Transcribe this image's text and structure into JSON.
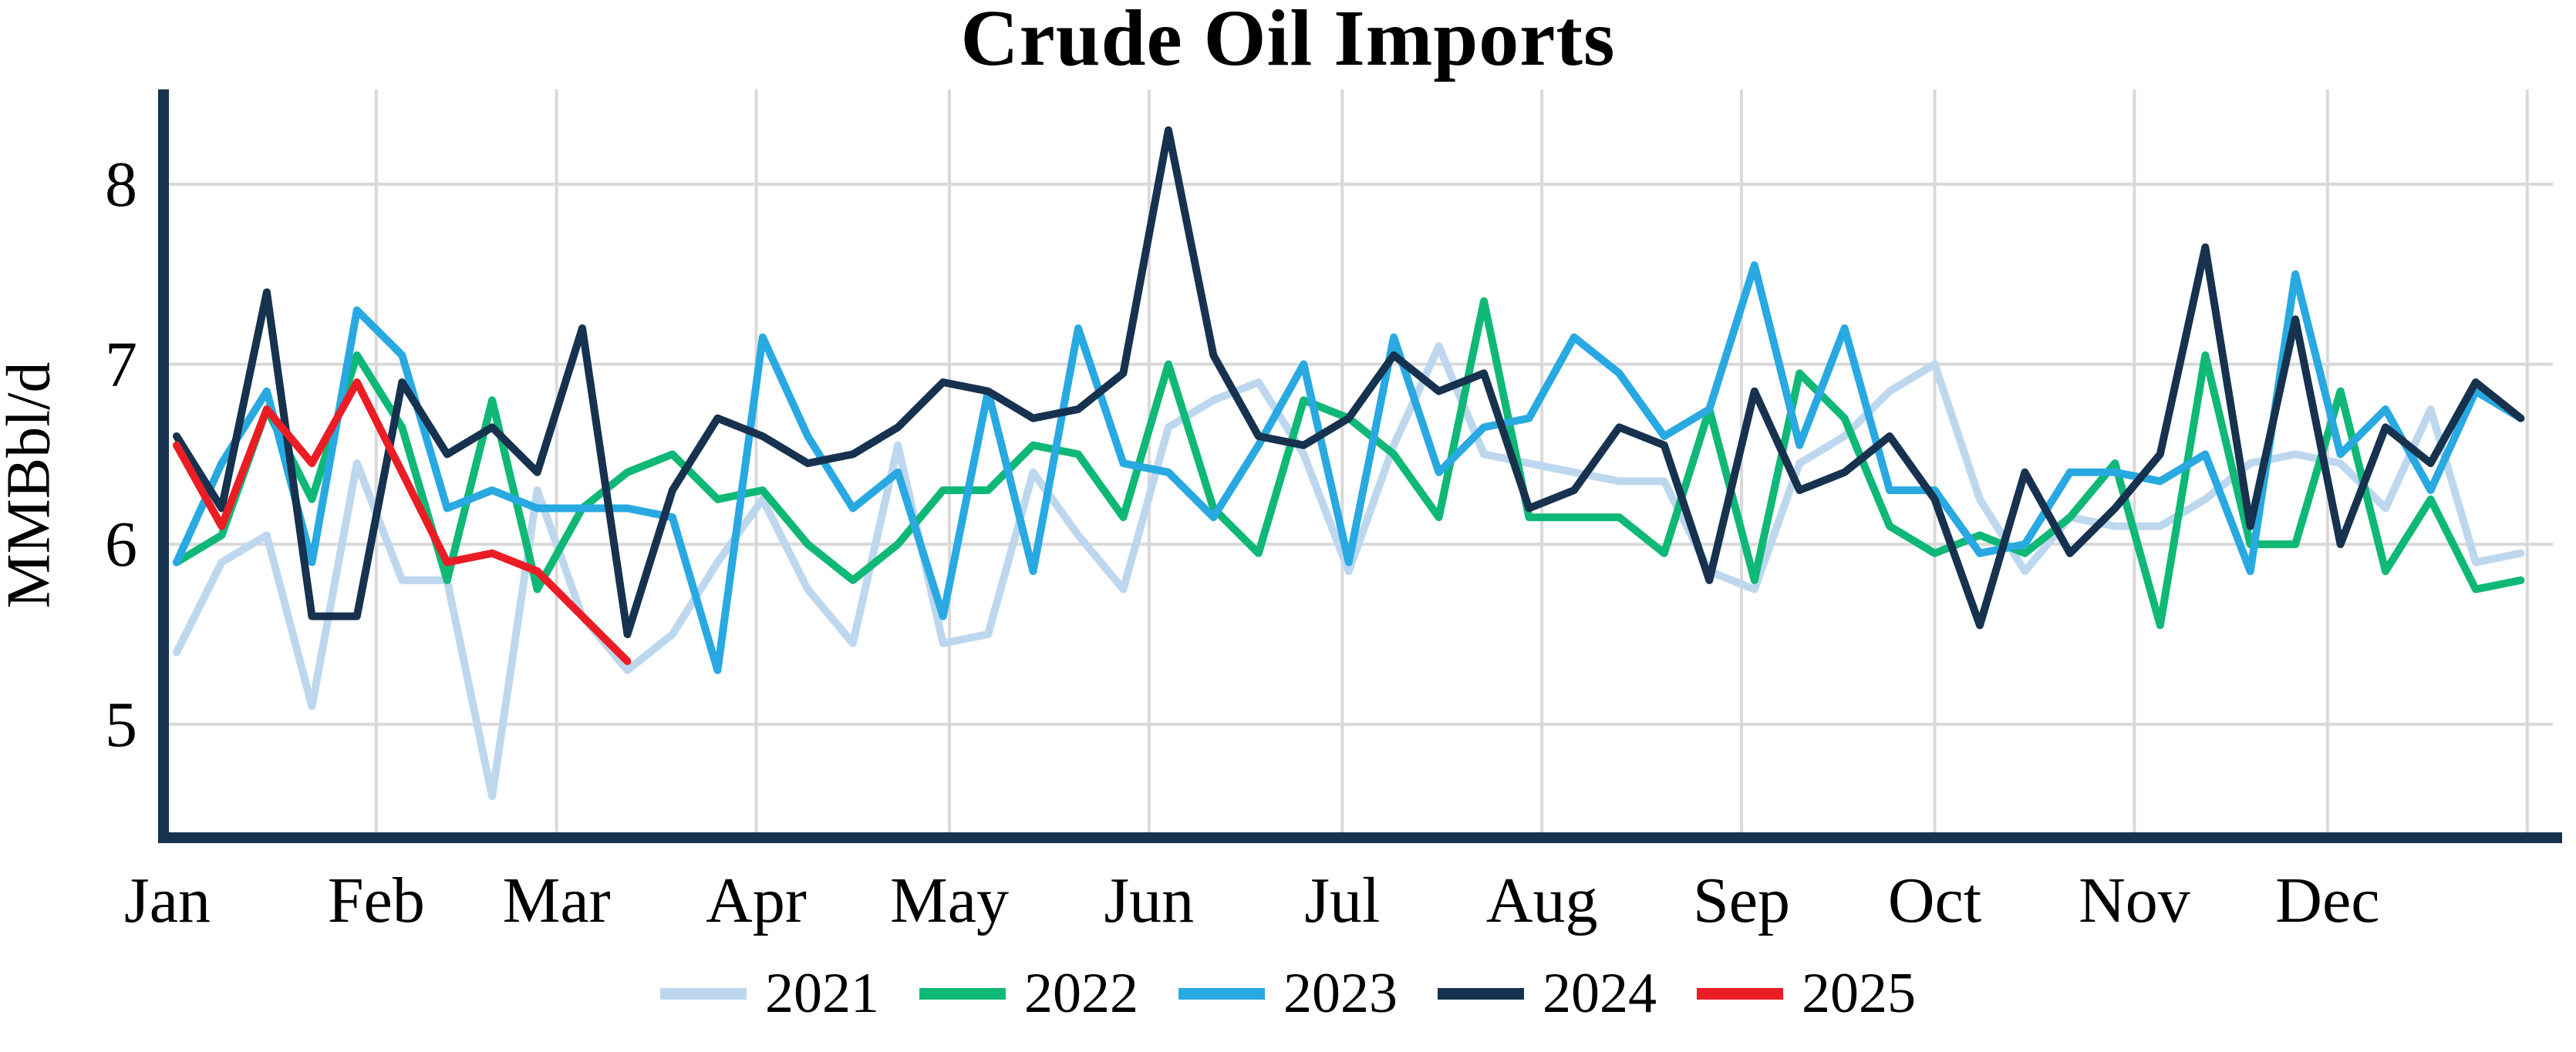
{
  "title": "Crude Oil Imports",
  "y_axis": {
    "label": "MMBbl/d",
    "tick_labels": [
      "8",
      "7",
      "6",
      "5"
    ],
    "tick_values": [
      8,
      7,
      6,
      5
    ]
  },
  "x_axis": {
    "tick_labels": [
      "Jan",
      "Feb",
      "Mar",
      "Apr",
      "May",
      "Jun",
      "Jul",
      "Aug",
      "Sep",
      "Oct",
      "Nov",
      "Dec"
    ]
  },
  "legend": {
    "items": [
      {
        "label": "2021",
        "color": "#BDD7EE"
      },
      {
        "label": "2022",
        "color": "#0FB876"
      },
      {
        "label": "2023",
        "color": "#29A9E1"
      },
      {
        "label": "2024",
        "color": "#16324F"
      },
      {
        "label": "2025",
        "color": "#EB1C24"
      }
    ]
  },
  "colors": {
    "axis": "#16324F",
    "grid": "#D9D9D9",
    "text": "#000000",
    "background": "#FFFFFF"
  },
  "chart_data": {
    "type": "line",
    "title": "Crude Oil Imports",
    "xlabel": "",
    "ylabel": "MMBbl/d",
    "x_unit": "week_of_year",
    "x_tick_labels": [
      "Jan",
      "Feb",
      "Mar",
      "Apr",
      "May",
      "Jun",
      "Jul",
      "Aug",
      "Sep",
      "Oct",
      "Nov",
      "Dec"
    ],
    "y_ticks": [
      5,
      6,
      7,
      8
    ],
    "ylim": [
      4.4,
      8.55
    ],
    "grid": true,
    "legend_position": "bottom",
    "series": [
      {
        "name": "2021",
        "color": "#BDD7EE",
        "values": [
          5.4,
          5.9,
          6.05,
          5.1,
          6.45,
          5.8,
          5.8,
          4.6,
          6.3,
          5.6,
          5.3,
          5.5,
          5.9,
          6.25,
          5.75,
          5.45,
          6.55,
          5.45,
          5.5,
          6.4,
          6.05,
          5.75,
          6.65,
          6.8,
          6.9,
          6.5,
          5.85,
          6.55,
          7.1,
          6.5,
          6.45,
          6.4,
          6.35,
          6.35,
          5.85,
          5.75,
          6.45,
          6.6,
          6.85,
          7.0,
          6.25,
          5.85,
          6.15,
          6.1,
          6.1,
          6.25,
          6.45,
          6.5,
          6.45,
          6.2,
          6.75,
          5.9,
          5.95
        ]
      },
      {
        "name": "2022",
        "color": "#0FB876",
        "values": [
          5.9,
          6.05,
          6.75,
          6.25,
          7.05,
          6.65,
          5.8,
          6.8,
          5.75,
          6.2,
          6.4,
          6.5,
          6.25,
          6.3,
          6.0,
          5.8,
          6.0,
          6.3,
          6.3,
          6.55,
          6.5,
          6.15,
          7.0,
          6.2,
          5.95,
          6.8,
          6.7,
          6.5,
          6.15,
          7.35,
          6.15,
          6.15,
          6.15,
          5.95,
          6.75,
          5.8,
          6.95,
          6.7,
          6.1,
          5.95,
          6.05,
          5.95,
          6.15,
          6.45,
          5.55,
          7.05,
          6.0,
          6.0,
          6.85,
          5.85,
          6.25,
          5.75,
          5.8
        ]
      },
      {
        "name": "2023",
        "color": "#29A9E1",
        "values": [
          5.9,
          6.45,
          6.85,
          5.9,
          7.3,
          7.05,
          6.2,
          6.3,
          6.2,
          6.2,
          6.2,
          6.15,
          5.3,
          7.15,
          6.6,
          6.2,
          6.4,
          5.6,
          6.85,
          5.85,
          7.2,
          6.45,
          6.4,
          6.15,
          6.55,
          7.0,
          5.9,
          7.15,
          6.4,
          6.65,
          6.7,
          7.15,
          6.95,
          6.6,
          6.75,
          7.55,
          6.55,
          7.2,
          6.3,
          6.3,
          5.95,
          6.0,
          6.4,
          6.4,
          6.35,
          6.5,
          5.85,
          7.5,
          6.5,
          6.75,
          6.3,
          6.85,
          6.7
        ]
      },
      {
        "name": "2024",
        "color": "#16324F",
        "values": [
          6.6,
          6.2,
          7.4,
          5.6,
          5.6,
          6.9,
          6.5,
          6.65,
          6.4,
          7.2,
          5.5,
          6.3,
          6.7,
          6.6,
          6.45,
          6.5,
          6.65,
          6.9,
          6.85,
          6.7,
          6.75,
          6.95,
          8.3,
          7.05,
          6.6,
          6.55,
          6.7,
          7.05,
          6.85,
          6.95,
          6.2,
          6.3,
          6.65,
          6.55,
          5.8,
          6.85,
          6.3,
          6.4,
          6.6,
          6.25,
          5.55,
          6.4,
          5.95,
          6.2,
          6.5,
          7.65,
          6.1,
          7.25,
          6.0,
          6.65,
          6.45,
          6.9,
          6.7
        ]
      },
      {
        "name": "2025",
        "color": "#EB1C24",
        "values": [
          6.55,
          6.1,
          6.75,
          6.45,
          6.9,
          6.4,
          5.9,
          5.95,
          5.85,
          5.6,
          5.35
        ]
      }
    ]
  }
}
